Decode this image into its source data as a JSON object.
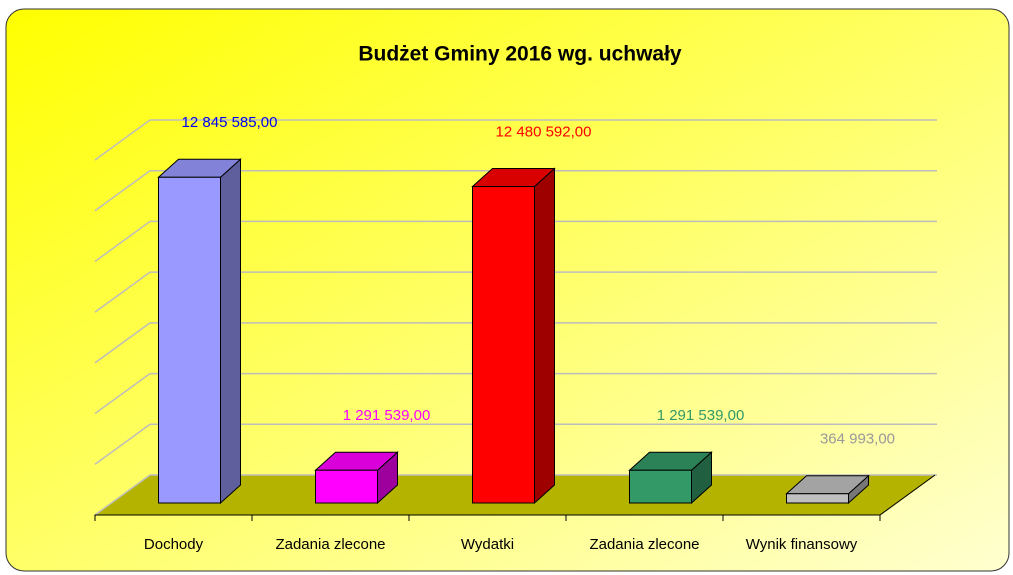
{
  "chart_data": {
    "type": "bar3d",
    "title": "Budżet Gminy 2016 wg. uchwały",
    "categories": [
      "Dochody",
      "Zadania zlecone",
      "Wydatki",
      "Zadania zlecone",
      "Wynik finansowy"
    ],
    "values": [
      12845585,
      1291539,
      12480592,
      1291539,
      364993
    ],
    "value_labels": [
      "12 845 585,00",
      "1 291 539,00",
      "12 480 592,00",
      "1 291 539,00",
      "364 993,00"
    ],
    "colors": [
      "#9999ff",
      "#ff00ff",
      "#ff0000",
      "#339966",
      "#c0c0c0"
    ],
    "label_colors": [
      "#0000ee",
      "#ff00ff",
      "#ff0000",
      "#339966",
      "#999999"
    ],
    "ylim": [
      0,
      14000000
    ],
    "yticks": [
      0,
      2000000,
      4000000,
      6000000,
      8000000,
      10000000,
      12000000,
      14000000
    ],
    "grid": true
  }
}
